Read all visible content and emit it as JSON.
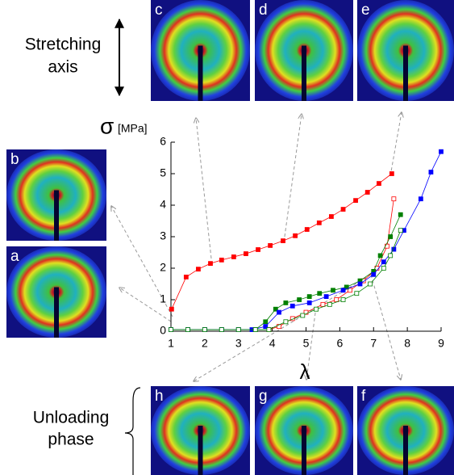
{
  "chart_data": {
    "type": "line",
    "y_label": "σ",
    "y_label_unit": "[MPa]",
    "x_label": "λ",
    "xlim": [
      1,
      9
    ],
    "xticks": [
      1,
      2,
      3,
      4,
      5,
      6,
      7,
      8,
      9
    ],
    "ylim": [
      0,
      6
    ],
    "yticks": [
      0,
      1,
      2,
      3,
      4,
      5,
      6
    ],
    "series": [
      {
        "color": "#ff0000",
        "marker": "square",
        "x": [
          1.02,
          1.45,
          1.81,
          2.17,
          2.5,
          2.86,
          3.22,
          3.58,
          3.94,
          4.32,
          4.68,
          5.03,
          5.39,
          5.75,
          6.1,
          6.47,
          6.82,
          7.16,
          7.54
        ],
        "values": [
          0.7,
          1.72,
          1.97,
          2.15,
          2.26,
          2.36,
          2.46,
          2.59,
          2.72,
          2.87,
          3.03,
          3.23,
          3.44,
          3.64,
          3.87,
          4.15,
          4.41,
          4.69,
          5.0
        ]
      },
      {
        "color": "#ff0000",
        "marker": "square-open",
        "x": [
          7.6,
          7.4,
          7.1,
          6.7,
          6.3,
          5.9,
          5.5,
          5.0,
          4.6,
          4.2,
          3.9
        ],
        "values": [
          4.2,
          2.7,
          2.0,
          1.6,
          1.3,
          1.0,
          0.85,
          0.6,
          0.4,
          0.15,
          0.05
        ]
      },
      {
        "color": "#008000",
        "marker": "square",
        "x": [
          1.0,
          1.5,
          2.0,
          2.5,
          3.0,
          3.5,
          3.8,
          4.1,
          4.4,
          4.8,
          5.1,
          5.4,
          5.8,
          6.2,
          6.6,
          7.0,
          7.2,
          7.5,
          7.8
        ],
        "values": [
          0.05,
          0.05,
          0.05,
          0.05,
          0.05,
          0.05,
          0.3,
          0.7,
          0.9,
          1.0,
          1.1,
          1.2,
          1.3,
          1.4,
          1.6,
          1.9,
          2.4,
          3.0,
          3.7
        ]
      },
      {
        "color": "#0000ff",
        "marker": "square",
        "x": [
          1.0,
          1.5,
          2.0,
          2.5,
          3.0,
          3.4,
          3.8,
          4.2,
          4.6,
          5.1,
          5.6,
          6.1,
          6.6,
          7.0,
          7.3,
          7.6,
          7.9,
          8.4,
          8.7,
          9.0
        ],
        "values": [
          0.05,
          0.05,
          0.05,
          0.05,
          0.05,
          0.05,
          0.15,
          0.6,
          0.8,
          0.9,
          1.1,
          1.3,
          1.5,
          1.8,
          2.2,
          2.6,
          3.2,
          4.2,
          5.05,
          5.7
        ]
      },
      {
        "color": "#008000",
        "marker": "square-open",
        "x": [
          1.0,
          1.5,
          2.0,
          2.5,
          3.0,
          3.5,
          3.9,
          4.4,
          4.9,
          5.3,
          5.7,
          6.1,
          6.5,
          6.9,
          7.3,
          7.5,
          7.8
        ],
        "values": [
          0.05,
          0.05,
          0.05,
          0.05,
          0.05,
          0.05,
          0.05,
          0.3,
          0.5,
          0.7,
          0.85,
          1.0,
          1.2,
          1.5,
          2.0,
          2.4,
          3.2
        ]
      }
    ]
  },
  "panels": [
    "c",
    "d",
    "e",
    "b",
    "a",
    "h",
    "g",
    "f"
  ],
  "stretching_label": [
    "Stretching",
    "axis"
  ],
  "unloading_label": [
    "Unloading",
    "phase"
  ]
}
